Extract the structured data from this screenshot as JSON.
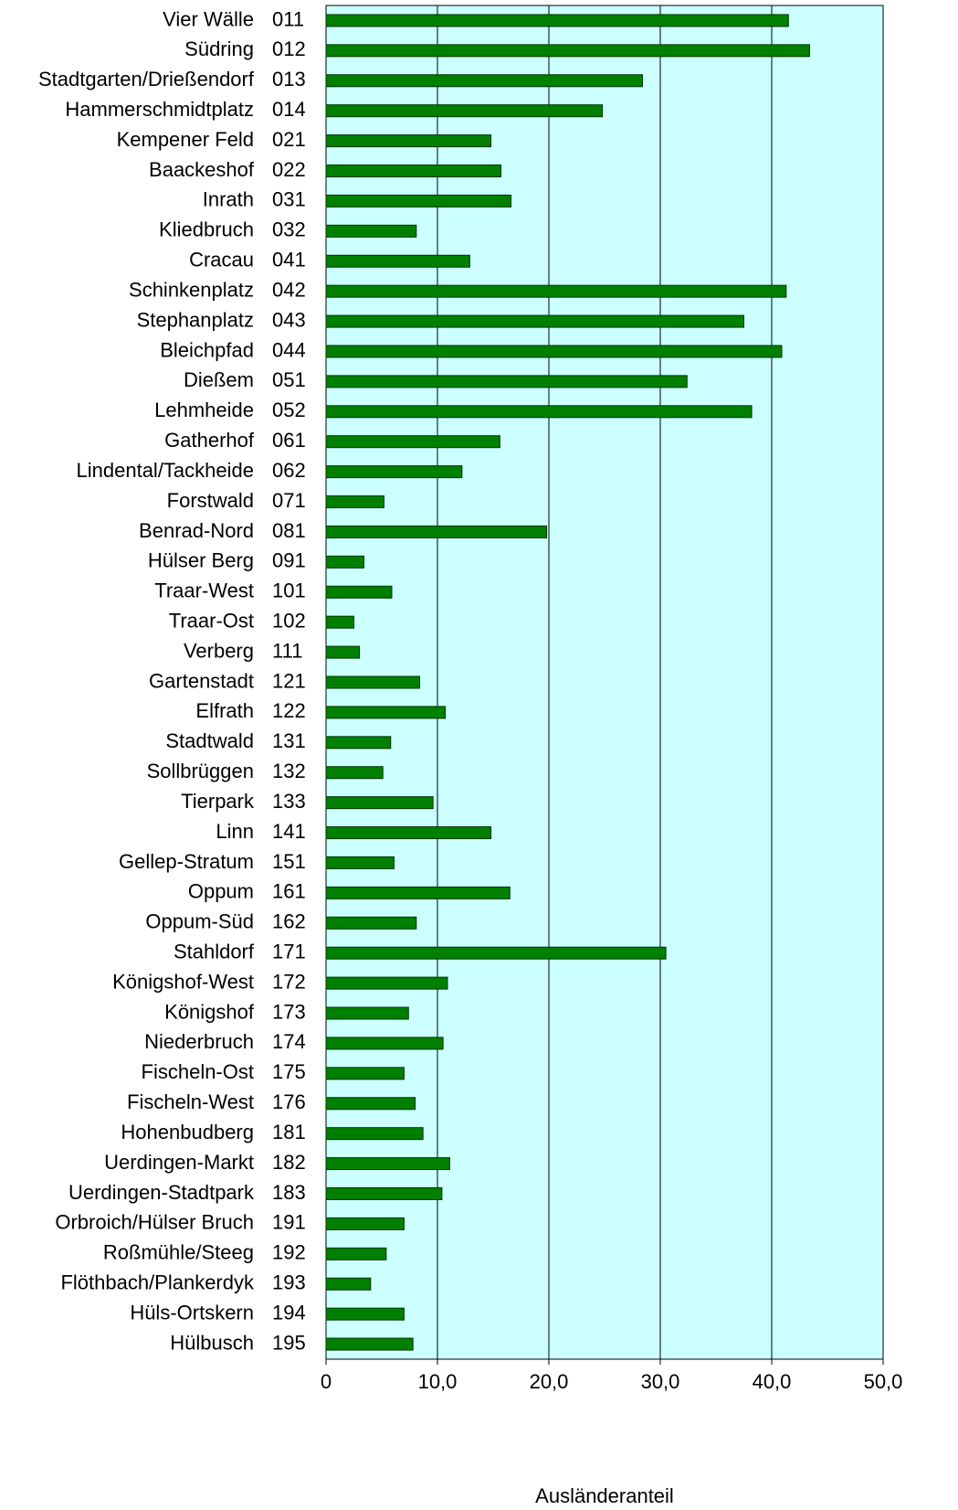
{
  "chart_data": {
    "type": "bar",
    "orientation": "horizontal",
    "x_label": "Ausländeranteil",
    "categories": [
      "Vier Wälle",
      "Südring",
      "Stadtgarten/Drießendorf",
      "Hammerschmidtplatz",
      "Kempener Feld",
      "Baackeshof",
      "Inrath",
      "Kliedbruch",
      "Cracau",
      "Schinkenplatz",
      "Stephanplatz",
      "Bleichpfad",
      "Dießem",
      "Lehmheide",
      "Gatherhof",
      "Lindental/Tackheide",
      "Forstwald",
      "Benrad-Nord",
      "Hülser Berg",
      "Traar-West",
      "Traar-Ost",
      "Verberg",
      "Gartenstadt",
      "Elfrath",
      "Stadtwald",
      "Sollbrüggen",
      "Tierpark",
      "Linn",
      "Gellep-Stratum",
      "Oppum",
      "Oppum-Süd",
      "Stahldorf",
      "Königshof-West",
      "Königshof",
      "Niederbruch",
      "Fischeln-Ost",
      "Fischeln-West",
      "Hohenbudberg",
      "Uerdingen-Markt",
      "Uerdingen-Stadtpark",
      "Orbroich/Hülser Bruch",
      "Roßmühle/Steeg",
      "Flöthbach/Plankerdyk",
      "Hüls-Ortskern",
      "Hülbusch"
    ],
    "codes": [
      "011",
      "012",
      "013",
      "014",
      "021",
      "022",
      "031",
      "032",
      "041",
      "042",
      "043",
      "044",
      "051",
      "052",
      "061",
      "062",
      "071",
      "081",
      "091",
      "101",
      "102",
      "111",
      "121",
      "122",
      "131",
      "132",
      "133",
      "141",
      "151",
      "161",
      "162",
      "171",
      "172",
      "173",
      "174",
      "175",
      "176",
      "181",
      "182",
      "183",
      "191",
      "192",
      "193",
      "194",
      "195"
    ],
    "values": [
      41.5,
      43.4,
      28.4,
      24.8,
      14.8,
      15.7,
      16.6,
      8.1,
      12.9,
      41.3,
      37.5,
      40.9,
      32.4,
      38.2,
      15.6,
      12.2,
      5.2,
      19.8,
      3.4,
      5.9,
      2.5,
      3.0,
      8.4,
      10.7,
      5.8,
      5.1,
      9.6,
      14.8,
      6.1,
      16.5,
      8.1,
      30.5,
      10.9,
      7.4,
      10.5,
      7.0,
      8.0,
      8.7,
      11.1,
      10.4,
      7.0,
      5.4,
      4.0,
      7.0,
      7.8
    ],
    "color": "#008000",
    "background": "#ccffff",
    "xlim": [
      0,
      50
    ],
    "xticks": [
      0,
      {
        "value": 10,
        "label": "10,0"
      },
      {
        "value": 20,
        "label": "20,0"
      },
      {
        "value": 30,
        "label": "30,0"
      },
      {
        "value": 40,
        "label": "40,0"
      },
      {
        "value": 50,
        "label": "50,0"
      }
    ],
    "grid": true
  }
}
